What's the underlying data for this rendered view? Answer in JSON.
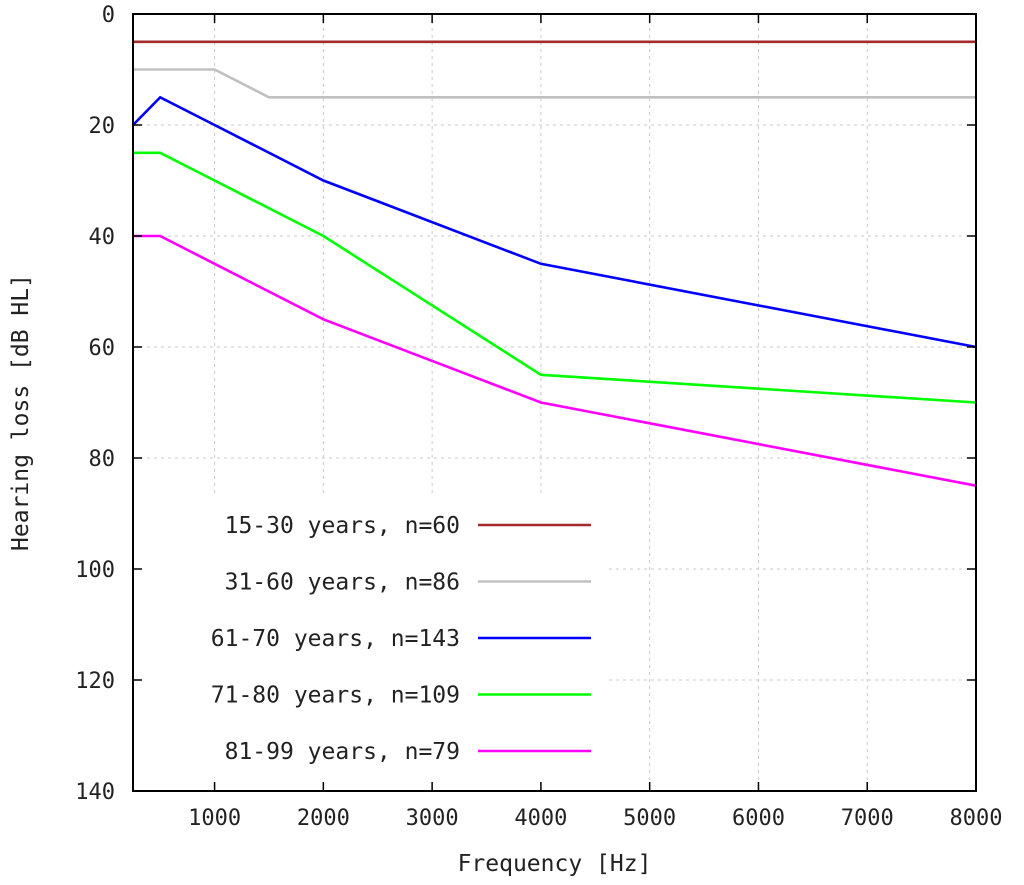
{
  "chart_data": {
    "type": "line",
    "title": "",
    "xlabel": "Frequency [Hz]",
    "ylabel": "Hearing loss [dB HL]",
    "xlim": [
      250,
      8000
    ],
    "ylim": [
      0,
      140
    ],
    "y_inverted": true,
    "grid": true,
    "legend_position": "bottom-left",
    "x_ticks": [
      "1000",
      "2000",
      "3000",
      "4000",
      "5000",
      "6000",
      "7000",
      "8000"
    ],
    "x_tick_values": [
      1000,
      2000,
      3000,
      4000,
      5000,
      6000,
      7000,
      8000
    ],
    "y_ticks": [
      "0",
      "20",
      "40",
      "60",
      "80",
      "100",
      "120",
      "140"
    ],
    "y_tick_values": [
      0,
      20,
      40,
      60,
      80,
      100,
      120,
      140
    ],
    "series": [
      {
        "name": "15-30 years, n=60",
        "color": "#a52a2a",
        "x": [
          250,
          500,
          1000,
          2000,
          4000,
          8000
        ],
        "y": [
          5,
          5,
          5,
          5,
          5,
          5
        ]
      },
      {
        "name": "31-60 years, n=86",
        "color": "#c0c0c0",
        "x": [
          250,
          500,
          1000,
          1500,
          2000,
          4000,
          8000
        ],
        "y": [
          10,
          10,
          10,
          15,
          15,
          15,
          15
        ]
      },
      {
        "name": "61-70 years, n=143",
        "color": "#0000ff",
        "x": [
          250,
          500,
          1000,
          2000,
          4000,
          8000
        ],
        "y": [
          20,
          15,
          20,
          30,
          45,
          60
        ]
      },
      {
        "name": "71-80 years, n=109",
        "color": "#00ff00",
        "x": [
          250,
          500,
          1000,
          2000,
          4000,
          8000
        ],
        "y": [
          25,
          25,
          30,
          40,
          65,
          70
        ]
      },
      {
        "name": "81-99 years, n=79",
        "color": "#ff00ff",
        "x": [
          250,
          500,
          1000,
          2000,
          4000,
          8000
        ],
        "y": [
          40,
          40,
          45,
          55,
          70,
          85
        ]
      }
    ]
  }
}
